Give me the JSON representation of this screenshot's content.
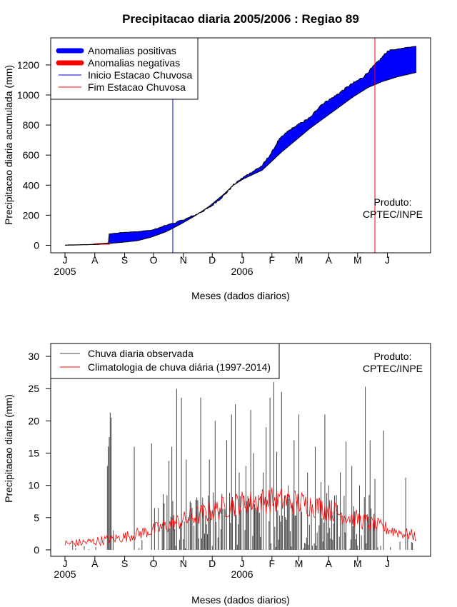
{
  "chart_data": [
    {
      "type": "area",
      "title": "Precipitacao diaria 2005/2006 : Regiao 89",
      "xlabel": "Meses (dados diarios)",
      "ylabel": "Precipitacao diaria acumulada (mm)",
      "ylim": [
        -50,
        1380
      ],
      "yticks": [
        0,
        200,
        400,
        600,
        800,
        1000,
        1200
      ],
      "month_labels": [
        "J",
        "A",
        "S",
        "O",
        "N",
        "D",
        "J",
        "F",
        "M",
        "A",
        "M",
        "J"
      ],
      "year_labels": [
        {
          "text": "2005",
          "month_index": 0
        },
        {
          "text": "2006",
          "month_index": 6
        }
      ],
      "legend": [
        {
          "label": "Anomalias positivas",
          "color": "#0000ff",
          "style": "thick"
        },
        {
          "label": "Anomalias negativas",
          "color": "#ff0000",
          "style": "thick"
        },
        {
          "label": "Inicio Estacao Chuvosa",
          "color": "#0000ff",
          "style": "thin"
        },
        {
          "label": "Fim Estacao Chuvosa",
          "color": "#ff0000",
          "style": "thin"
        }
      ],
      "product_label": [
        "Produto:",
        "CPTEC/INPE"
      ],
      "colors": {
        "positive": "#0000ff",
        "negative": "#ff0000",
        "line": "#000000"
      },
      "onset_day": 112,
      "end_day": 322,
      "observed_points": [
        [
          0,
          0
        ],
        [
          30,
          5
        ],
        [
          45,
          10
        ],
        [
          46,
          75
        ],
        [
          60,
          85
        ],
        [
          75,
          90
        ],
        [
          90,
          100
        ],
        [
          105,
          130
        ],
        [
          120,
          160
        ],
        [
          135,
          200
        ],
        [
          150,
          250
        ],
        [
          165,
          330
        ],
        [
          175,
          400
        ],
        [
          185,
          450
        ],
        [
          195,
          490
        ],
        [
          205,
          530
        ],
        [
          215,
          620
        ],
        [
          222,
          700
        ],
        [
          232,
          760
        ],
        [
          242,
          800
        ],
        [
          255,
          850
        ],
        [
          265,
          930
        ],
        [
          280,
          990
        ],
        [
          295,
          1060
        ],
        [
          310,
          1120
        ],
        [
          325,
          1220
        ],
        [
          335,
          1290
        ],
        [
          350,
          1310
        ],
        [
          365,
          1325
        ]
      ],
      "climatology_points": [
        [
          0,
          0
        ],
        [
          30,
          5
        ],
        [
          46,
          12
        ],
        [
          60,
          20
        ],
        [
          75,
          30
        ],
        [
          90,
          55
        ],
        [
          105,
          90
        ],
        [
          120,
          140
        ],
        [
          135,
          195
        ],
        [
          150,
          260
        ],
        [
          165,
          340
        ],
        [
          175,
          400
        ],
        [
          185,
          440
        ],
        [
          195,
          470
        ],
        [
          205,
          500
        ],
        [
          215,
          560
        ],
        [
          225,
          620
        ],
        [
          240,
          700
        ],
        [
          255,
          780
        ],
        [
          270,
          850
        ],
        [
          285,
          920
        ],
        [
          300,
          990
        ],
        [
          315,
          1050
        ],
        [
          330,
          1090
        ],
        [
          345,
          1120
        ],
        [
          365,
          1150
        ]
      ]
    },
    {
      "type": "bar",
      "xlabel": "Meses (dados diarios)",
      "ylabel": "Precipitacao diaria (mm)",
      "ylim": [
        -1,
        32
      ],
      "yticks": [
        0,
        5,
        10,
        15,
        20,
        25,
        30
      ],
      "month_labels": [
        "J",
        "A",
        "S",
        "O",
        "N",
        "D",
        "J",
        "F",
        "M",
        "A",
        "M",
        "J"
      ],
      "year_labels": [
        {
          "text": "2005",
          "month_index": 0
        },
        {
          "text": "2006",
          "month_index": 6
        }
      ],
      "legend": [
        {
          "label": "Chuva diaria observada",
          "color": "#444444"
        },
        {
          "label": "Climatologia de chuva diária (1997-2014)",
          "color": "#ff0000"
        }
      ],
      "product_label": [
        "Produto:",
        "CPTEC/INPE"
      ],
      "colors": {
        "observed": "#444444",
        "climatology": "#ff0000"
      },
      "observed_spikes": [
        [
          44,
          13.0
        ],
        [
          45,
          16.0
        ],
        [
          46,
          17.5
        ],
        [
          47,
          21.3
        ],
        [
          48,
          20.5
        ],
        [
          50,
          3.0
        ],
        [
          72,
          16.0
        ],
        [
          90,
          16.5
        ],
        [
          93,
          6.5
        ],
        [
          97,
          6.5
        ],
        [
          108,
          13.8
        ],
        [
          111,
          16.0
        ],
        [
          116,
          25.0
        ],
        [
          121,
          23.6
        ],
        [
          126,
          14.0
        ],
        [
          132,
          6.5
        ],
        [
          141,
          23.6
        ],
        [
          150,
          14.0
        ],
        [
          156,
          20.0
        ],
        [
          168,
          17.0
        ],
        [
          173,
          21.0
        ],
        [
          177,
          22.6
        ],
        [
          181,
          12.0
        ],
        [
          188,
          13.0
        ],
        [
          193,
          21.7
        ],
        [
          196,
          15.0
        ],
        [
          206,
          12.0
        ],
        [
          209,
          19.0
        ],
        [
          213,
          23.6
        ],
        [
          217,
          26.0
        ],
        [
          220,
          15.2
        ],
        [
          225,
          24.5
        ],
        [
          232,
          10.0
        ],
        [
          238,
          17.0
        ],
        [
          243,
          21.0
        ],
        [
          252,
          12.0
        ],
        [
          260,
          16.0
        ],
        [
          266,
          10.5
        ],
        [
          270,
          21.0
        ],
        [
          274,
          10.0
        ],
        [
          282,
          8.5
        ],
        [
          286,
          12.0
        ],
        [
          292,
          16.8
        ],
        [
          298,
          13.0
        ],
        [
          306,
          10.0
        ],
        [
          312,
          25.3
        ],
        [
          317,
          17.0
        ],
        [
          322,
          11.0
        ],
        [
          331,
          18.5
        ],
        [
          354,
          11.2
        ],
        [
          356,
          2.5
        ]
      ]
    }
  ]
}
